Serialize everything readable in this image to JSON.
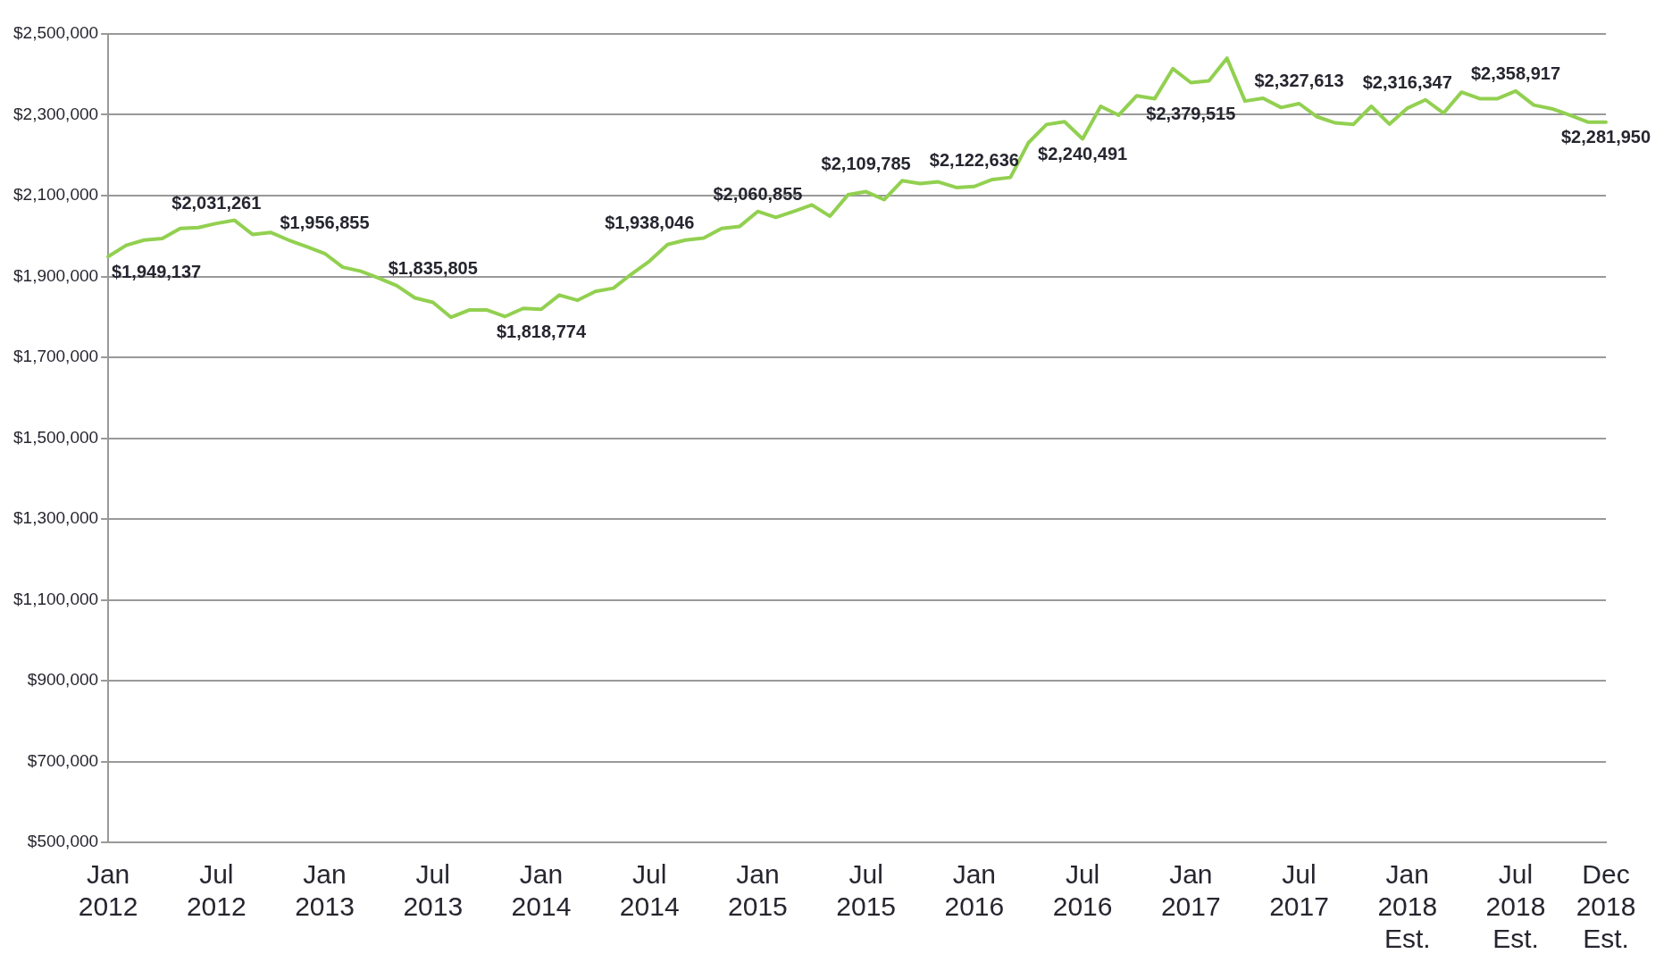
{
  "chart_data": {
    "type": "line",
    "categories": [
      "Jan 2012",
      null,
      null,
      null,
      null,
      null,
      "Jul 2012",
      null,
      null,
      null,
      null,
      null,
      "Jan 2013",
      null,
      null,
      null,
      null,
      null,
      "Jul 2013",
      null,
      null,
      null,
      null,
      null,
      "Jan 2014",
      null,
      null,
      null,
      null,
      null,
      "Jul 2014",
      null,
      null,
      null,
      null,
      null,
      "Jan 2015",
      null,
      null,
      null,
      null,
      null,
      "Jul 2015",
      null,
      null,
      null,
      null,
      null,
      "Jan 2016",
      null,
      null,
      null,
      null,
      null,
      "Jul 2016",
      null,
      null,
      null,
      null,
      null,
      "Jan 2017",
      null,
      null,
      null,
      null,
      null,
      "Jul 2017",
      null,
      null,
      null,
      null,
      null,
      "Jan 2018 Est.",
      null,
      null,
      null,
      null,
      null,
      "Jul 2018 Est.",
      null,
      null,
      null,
      null,
      "Dec 2018 Est."
    ],
    "series": [
      {
        "color": "#92d050",
        "values": [
          1949137,
          1977000,
          1990000,
          1994000,
          2019000,
          2021000,
          2031261,
          2039000,
          2004000,
          2009000,
          1990000,
          1974000,
          1956855,
          1923000,
          1913000,
          1896000,
          1877000,
          1847000,
          1835805,
          1799000,
          1817000,
          1817000,
          1801000,
          1821000,
          1818774,
          1854000,
          1841000,
          1863000,
          1871000,
          1906000,
          1938046,
          1979000,
          1990000,
          1995000,
          2019000,
          2024000,
          2060855,
          2046000,
          2061000,
          2077000,
          2049000,
          2102000,
          2109785,
          2090000,
          2137000,
          2130000,
          2134000,
          2120000,
          2122636,
          2140000,
          2145000,
          2231000,
          2276000,
          2283000,
          2240491,
          2321000,
          2299000,
          2347000,
          2340000,
          2414000,
          2379515,
          2384000,
          2440000,
          2334000,
          2341000,
          2318000,
          2327613,
          2295000,
          2280000,
          2276000,
          2321000,
          2277000,
          2316347,
          2337000,
          2304000,
          2356000,
          2340000,
          2340000,
          2358917,
          2324000,
          2315000,
          2299000,
          2282000,
          2281950
        ],
        "value_labels": [
          "$1,949,137",
          null,
          null,
          null,
          null,
          null,
          "$2,031,261",
          null,
          null,
          null,
          null,
          null,
          "$1,956,855",
          null,
          null,
          null,
          null,
          null,
          "$1,835,805",
          null,
          null,
          null,
          null,
          null,
          "$1,818,774",
          null,
          null,
          null,
          null,
          null,
          "$1,938,046",
          null,
          null,
          null,
          null,
          null,
          "$2,060,855",
          null,
          null,
          null,
          null,
          null,
          "$2,109,785",
          null,
          null,
          null,
          null,
          null,
          "$2,122,636",
          null,
          null,
          null,
          null,
          null,
          "$2,240,491",
          null,
          null,
          null,
          null,
          null,
          "$2,379,515",
          null,
          null,
          null,
          null,
          null,
          "$2,327,613",
          null,
          null,
          null,
          null,
          null,
          "$2,316,347",
          null,
          null,
          null,
          null,
          null,
          "$2,358,917",
          null,
          null,
          null,
          null,
          "$2,281,950"
        ]
      }
    ],
    "ylim": [
      500000,
      2500000
    ],
    "yticks": [
      {
        "value": 500000,
        "label": "$500,000"
      },
      {
        "value": 700000,
        "label": "$700,000"
      },
      {
        "value": 900000,
        "label": "$900,000"
      },
      {
        "value": 1100000,
        "label": "$1,100,000"
      },
      {
        "value": 1300000,
        "label": "$1,300,000"
      },
      {
        "value": 1500000,
        "label": "$1,500,000"
      },
      {
        "value": 1700000,
        "label": "$1,700,000"
      },
      {
        "value": 1900000,
        "label": "$1,900,000"
      },
      {
        "value": 2100000,
        "label": "$2,100,000"
      },
      {
        "value": 2300000,
        "label": "$2,300,000"
      },
      {
        "value": 2500000,
        "label": "$2,500,000"
      }
    ],
    "grid": "y",
    "legend": false,
    "marker": "none",
    "line_style": "solid"
  }
}
